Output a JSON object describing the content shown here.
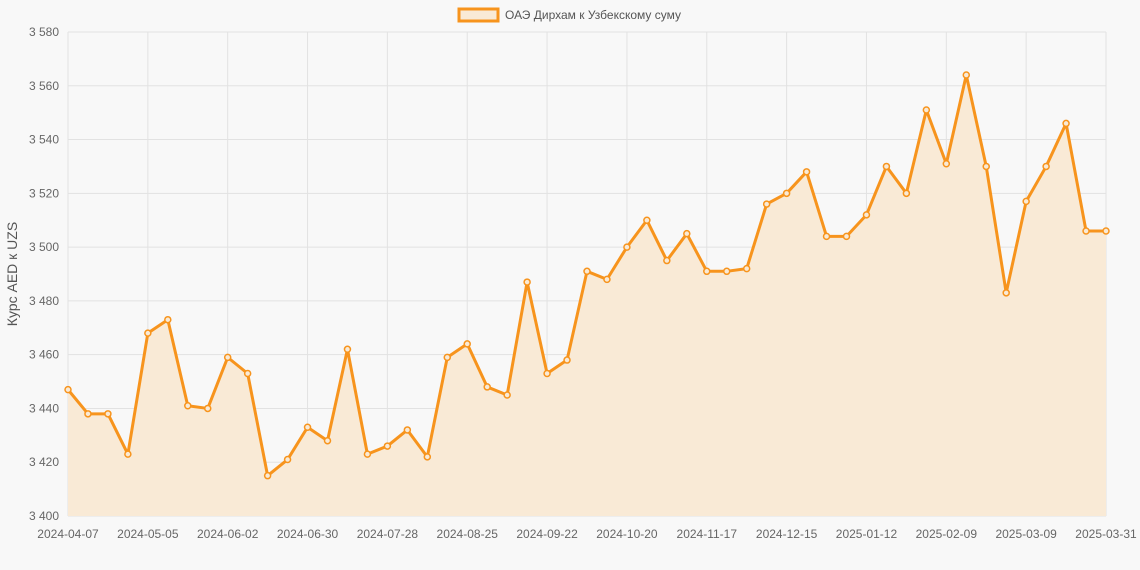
{
  "chart_data": {
    "type": "line",
    "title": "",
    "xlabel": "",
    "ylabel": "Курс AED к UZS",
    "ylim": [
      3400,
      3580
    ],
    "y_ticks": [
      3400,
      3420,
      3440,
      3460,
      3480,
      3500,
      3520,
      3540,
      3560,
      3580
    ],
    "y_tick_labels": [
      "3 400",
      "3 420",
      "3 440",
      "3 460",
      "3 480",
      "3 500",
      "3 520",
      "3 540",
      "3 560",
      "3 580"
    ],
    "x_tick_labels": [
      "2024-04-07",
      "2024-05-05",
      "2024-06-02",
      "2024-06-30",
      "2024-07-28",
      "2024-08-25",
      "2024-09-22",
      "2024-10-20",
      "2024-11-17",
      "2024-12-15",
      "2025-01-12",
      "2025-02-09",
      "2025-03-09",
      "2025-03-31"
    ],
    "grid": true,
    "legend_position": "top-center",
    "series": [
      {
        "name": "ОАЭ Дирхам к Узбекскому суму",
        "color": "#f7941d",
        "fill": "#f9ead6",
        "values": [
          3447,
          3438,
          3438,
          3423,
          3468,
          3473,
          3441,
          3440,
          3459,
          3453,
          3415,
          3421,
          3433,
          3428,
          3462,
          3423,
          3426,
          3432,
          3422,
          3459,
          3464,
          3448,
          3445,
          3487,
          3453,
          3458,
          3491,
          3488,
          3500,
          3510,
          3495,
          3505,
          3491,
          3491,
          3492,
          3516,
          3520,
          3528,
          3504,
          3504,
          3512,
          3530,
          3520,
          3551,
          3531,
          3564,
          3530,
          3483,
          3517,
          3530,
          3546,
          3506,
          3506
        ]
      }
    ]
  }
}
